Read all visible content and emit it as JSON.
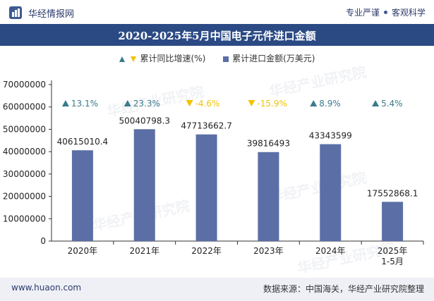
{
  "header": {
    "brand": "华经情报网",
    "tagline_left": "专业严谨",
    "tagline_right": "客观科学"
  },
  "watermark": "华经产业研究院",
  "chart_data": {
    "type": "bar",
    "title": "2020-2025年5月中国电子元件进口金额",
    "categories": [
      "2020年",
      "2021年",
      "2022年",
      "2023年",
      "2024年",
      "2025年\n1-5月"
    ],
    "series": [
      {
        "name": "累计进口金额(万美元)",
        "type": "bar",
        "color": "#5b6fa6",
        "values": [
          40615010.4,
          50040798.3,
          47713662.7,
          39816493,
          43343599,
          17552868.1
        ],
        "labels": [
          "40615010.4",
          "50040798.3",
          "47713662.7",
          "39816493",
          "43343599",
          "17552868.1"
        ]
      },
      {
        "name": "累计同比增速(%)",
        "type": "marker",
        "values": [
          13.1,
          23.3,
          -4.6,
          -15.9,
          8.9,
          5.4
        ],
        "labels": [
          "13.1%",
          "23.3%",
          "-4.6%",
          "-15.9%",
          "8.9%",
          "5.4%"
        ],
        "up_color": "#3a7a8c",
        "down_color": "#f2c200"
      }
    ],
    "yticks": [
      "70000000",
      "60000000",
      "50000000",
      "40000000",
      "30000000",
      "20000000",
      "10000000",
      "0"
    ],
    "ylim": [
      0,
      70000000
    ],
    "legend_position": "top-center",
    "grid": false
  },
  "footer": {
    "site": "www.huaon.com",
    "source": "数据来源：中国海关，华经产业研究院整理"
  }
}
